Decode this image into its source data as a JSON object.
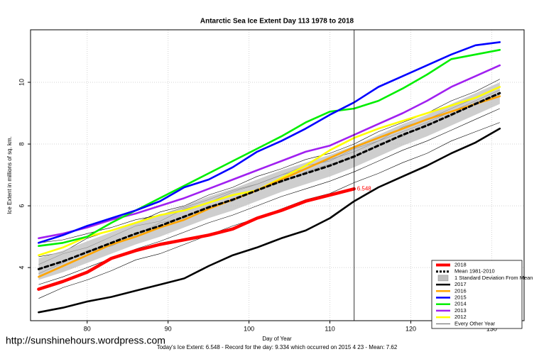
{
  "chart_data": {
    "type": "line",
    "title": "Antarctic Sea Ice Extent Day 113 1978 to 2018",
    "xlabel": "Day of Year",
    "ylabel": "Ice Extent in millions of sq. km.",
    "footer": "Today's Ice Extent: 6.548  - Record for the day: 9.334 which occurred on 2015 4 23  - Mean: 7.62",
    "watermark": "http://sunshinehours.wordpress.com",
    "xlim": [
      73,
      134
    ],
    "ylim": [
      2.28,
      11.7
    ],
    "xticks": [
      80,
      90,
      100,
      110,
      120,
      130
    ],
    "yticks": [
      4,
      6,
      8,
      10
    ],
    "grid": true,
    "legend": "lower right",
    "vline": 113,
    "x": [
      74,
      77,
      80,
      83,
      86,
      89,
      92,
      95,
      98,
      101,
      104,
      107,
      110,
      113,
      116,
      119,
      122,
      125,
      128,
      131
    ],
    "series": [
      {
        "name": "2018",
        "color": "#ff0000",
        "values": [
          3.3,
          3.55,
          3.85,
          4.3,
          4.55,
          4.75,
          4.9,
          5.05,
          5.25,
          5.6,
          5.85,
          6.15,
          6.35,
          6.548,
          null,
          null,
          null,
          null,
          null,
          null
        ]
      },
      {
        "name": "Mean 1981-2010",
        "color": "#000000",
        "dashed": true,
        "values": [
          3.95,
          4.2,
          4.5,
          4.8,
          5.1,
          5.35,
          5.65,
          5.95,
          6.2,
          6.5,
          6.8,
          7.05,
          7.3,
          7.6,
          7.95,
          8.3,
          8.6,
          8.95,
          9.3,
          9.65
        ]
      },
      {
        "name": "2017",
        "color": "#000000",
        "values": [
          2.55,
          2.7,
          2.9,
          3.05,
          3.25,
          3.45,
          3.65,
          4.05,
          4.4,
          4.65,
          4.95,
          5.2,
          5.6,
          6.15,
          6.6,
          6.95,
          7.3,
          7.7,
          8.05,
          8.5
        ]
      },
      {
        "name": "2016",
        "color": "#ffa500",
        "values": [
          3.7,
          4.05,
          4.4,
          4.75,
          5.0,
          5.3,
          5.55,
          5.9,
          6.2,
          6.5,
          6.85,
          7.2,
          7.55,
          7.9,
          8.2,
          8.5,
          8.8,
          9.05,
          9.3,
          9.55
        ]
      },
      {
        "name": "2015",
        "color": "#0000ff",
        "values": [
          4.8,
          5.05,
          5.35,
          5.6,
          5.85,
          6.15,
          6.6,
          6.85,
          7.25,
          7.75,
          8.1,
          8.5,
          8.95,
          9.35,
          9.85,
          10.2,
          10.55,
          10.9,
          11.2,
          11.3
        ]
      },
      {
        "name": "2014",
        "color": "#00ee00",
        "values": [
          4.7,
          4.8,
          5.0,
          5.45,
          5.85,
          6.25,
          6.65,
          7.05,
          7.45,
          7.85,
          8.25,
          8.7,
          9.05,
          9.15,
          9.4,
          9.8,
          10.25,
          10.75,
          10.9,
          11.05
        ]
      },
      {
        "name": "2013",
        "color": "#a020f0",
        "values": [
          4.95,
          5.1,
          5.3,
          5.55,
          5.75,
          6.0,
          6.25,
          6.55,
          6.85,
          7.15,
          7.45,
          7.75,
          7.95,
          8.3,
          8.65,
          9.0,
          9.4,
          9.85,
          10.2,
          10.55
        ]
      },
      {
        "name": "2012",
        "color": "#ffff00",
        "values": [
          4.4,
          4.65,
          5.0,
          5.2,
          5.45,
          5.7,
          5.85,
          6.1,
          6.35,
          6.5,
          6.9,
          7.3,
          7.8,
          8.2,
          8.5,
          8.75,
          9.0,
          9.25,
          9.5,
          9.85
        ]
      }
    ],
    "band": {
      "name": "1 Standard Deviation From Mean",
      "color": "#bebebe",
      "upper": [
        4.3,
        4.55,
        4.85,
        5.15,
        5.45,
        5.7,
        6.0,
        6.3,
        6.55,
        6.85,
        7.15,
        7.4,
        7.65,
        7.95,
        8.3,
        8.65,
        8.95,
        9.3,
        9.65,
        10.0
      ],
      "lower": [
        3.6,
        3.85,
        4.15,
        4.45,
        4.75,
        5.0,
        5.3,
        5.6,
        5.85,
        6.15,
        6.45,
        6.7,
        6.95,
        7.25,
        7.6,
        7.95,
        8.25,
        8.6,
        8.95,
        9.3
      ]
    },
    "background": {
      "name": "Every Other Year",
      "color": "#000000",
      "lines": [
        [
          3.45,
          3.7,
          4.0,
          4.3,
          4.6,
          4.85,
          5.15,
          5.45,
          5.7,
          6.0,
          6.3,
          6.55,
          6.8,
          7.1,
          7.45,
          7.8,
          8.1,
          8.45,
          8.8,
          9.15
        ],
        [
          4.35,
          4.5,
          4.95,
          5.2,
          5.45,
          5.8,
          6.0,
          6.35,
          6.6,
          6.95,
          7.2,
          7.5,
          7.7,
          8.0,
          8.4,
          8.7,
          9.0,
          9.4,
          9.7,
          10.1
        ],
        [
          3.0,
          3.35,
          3.6,
          3.9,
          4.25,
          4.45,
          4.75,
          5.05,
          5.35,
          5.6,
          5.9,
          6.2,
          6.4,
          6.75,
          7.05,
          7.4,
          7.7,
          8.1,
          8.4,
          8.7
        ],
        [
          4.1,
          4.45,
          4.65,
          5.0,
          5.35,
          5.5,
          5.9,
          6.1,
          6.45,
          6.7,
          7.0,
          7.3,
          7.45,
          7.85,
          8.1,
          8.55,
          8.8,
          9.15,
          9.5,
          9.85
        ],
        [
          3.8,
          4.15,
          4.55,
          4.7,
          5.05,
          5.45,
          5.6,
          6.0,
          6.15,
          6.55,
          6.75,
          7.1,
          7.35,
          7.55,
          8.0,
          8.25,
          8.65,
          8.9,
          9.35,
          9.6
        ],
        [
          4.8,
          4.9,
          5.1,
          5.3,
          5.55,
          5.7,
          5.95,
          6.2,
          6.5,
          6.7,
          7.0,
          7.2,
          7.5,
          7.75,
          8.1,
          8.4,
          8.7,
          9.05,
          9.4,
          9.75
        ]
      ]
    }
  }
}
